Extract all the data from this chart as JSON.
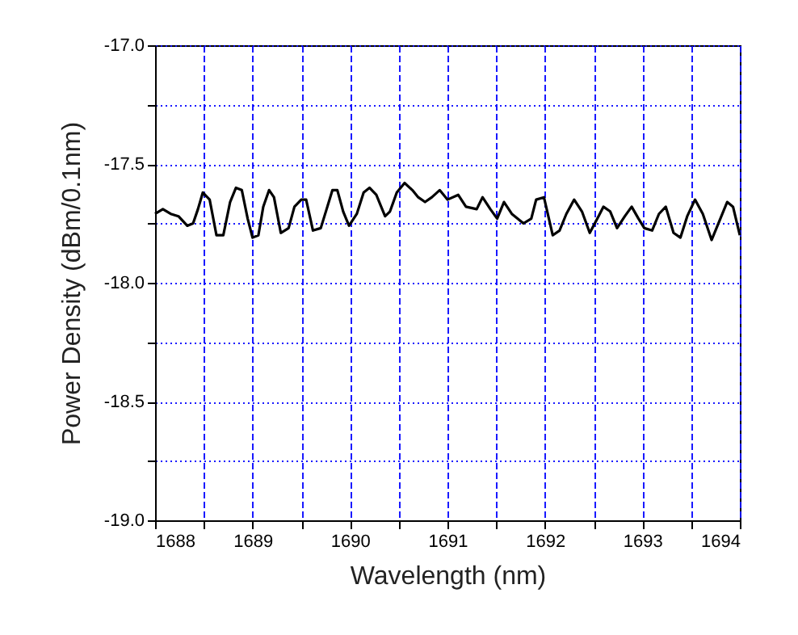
{
  "chart_data": {
    "type": "line",
    "xlabel": "Wavelength (nm)",
    "ylabel": "Power Density (dBm/0.1nm)",
    "x": [
      1688.0,
      1688.08,
      1688.16,
      1688.24,
      1688.33,
      1688.39,
      1688.44,
      1688.49,
      1688.56,
      1688.63,
      1688.7,
      1688.77,
      1688.83,
      1688.89,
      1688.95,
      1689.0,
      1689.06,
      1689.11,
      1689.17,
      1689.22,
      1689.29,
      1689.37,
      1689.43,
      1689.5,
      1689.55,
      1689.62,
      1689.7,
      1689.76,
      1689.82,
      1689.87,
      1689.93,
      1689.99,
      1690.07,
      1690.14,
      1690.2,
      1690.27,
      1690.36,
      1690.41,
      1690.48,
      1690.56,
      1690.64,
      1690.7,
      1690.77,
      1690.84,
      1690.92,
      1691.0,
      1691.11,
      1691.19,
      1691.3,
      1691.36,
      1691.44,
      1691.51,
      1691.58,
      1691.66,
      1691.78,
      1691.86,
      1691.91,
      1691.99,
      1692.08,
      1692.15,
      1692.22,
      1692.3,
      1692.38,
      1692.46,
      1692.55,
      1692.6,
      1692.67,
      1692.74,
      1692.82,
      1692.89,
      1692.96,
      1693.02,
      1693.1,
      1693.17,
      1693.24,
      1693.32,
      1693.39,
      1693.46,
      1693.54,
      1693.62,
      1693.71,
      1693.79,
      1693.87,
      1693.93,
      1694.0
    ],
    "series": [
      {
        "color": "#000000",
        "values": [
          -17.71,
          -17.69,
          -17.71,
          -17.72,
          -17.76,
          -17.75,
          -17.69,
          -17.62,
          -17.65,
          -17.8,
          -17.8,
          -17.66,
          -17.6,
          -17.61,
          -17.73,
          -17.81,
          -17.8,
          -17.68,
          -17.61,
          -17.64,
          -17.79,
          -17.77,
          -17.68,
          -17.65,
          -17.65,
          -17.78,
          -17.77,
          -17.69,
          -17.61,
          -17.61,
          -17.7,
          -17.76,
          -17.71,
          -17.62,
          -17.6,
          -17.63,
          -17.72,
          -17.7,
          -17.62,
          -17.58,
          -17.61,
          -17.64,
          -17.66,
          -17.64,
          -17.61,
          -17.65,
          -17.63,
          -17.68,
          -17.69,
          -17.64,
          -17.69,
          -17.73,
          -17.66,
          -17.71,
          -17.75,
          -17.73,
          -17.65,
          -17.64,
          -17.8,
          -17.78,
          -17.71,
          -17.65,
          -17.7,
          -17.79,
          -17.72,
          -17.68,
          -17.7,
          -17.77,
          -17.72,
          -17.68,
          -17.73,
          -17.77,
          -17.78,
          -17.71,
          -17.68,
          -17.79,
          -17.81,
          -17.72,
          -17.65,
          -17.71,
          -17.82,
          -17.74,
          -17.66,
          -17.68,
          -17.8
        ]
      }
    ],
    "xlim": [
      1688,
      1694
    ],
    "xticks": [
      1688,
      {
        "value": 1688.5,
        "label": null
      },
      1689,
      {
        "value": 1689.5,
        "label": null
      },
      1690,
      {
        "value": 1690.5,
        "label": null
      },
      1691,
      {
        "value": 1691.5,
        "label": null
      },
      1692,
      {
        "value": 1692.5,
        "label": null
      },
      1693,
      {
        "value": 1693.5,
        "label": null
      },
      1694
    ],
    "ylim": [
      -19.0,
      -17.0
    ],
    "yticks": [
      {
        "value": -19,
        "label": "-19.0"
      },
      {
        "value": -18.75,
        "label": null
      },
      {
        "value": -18.5,
        "label": "-18.5"
      },
      {
        "value": -18.25,
        "label": null
      },
      {
        "value": -18,
        "label": "-18.0"
      },
      {
        "value": -17.75,
        "label": null
      },
      {
        "value": -17.5,
        "label": "-17.5"
      },
      {
        "value": -17.25,
        "label": null
      },
      {
        "value": -17,
        "label": "-17.0"
      }
    ],
    "grid": true,
    "marker": "none",
    "line_style": "solid"
  }
}
